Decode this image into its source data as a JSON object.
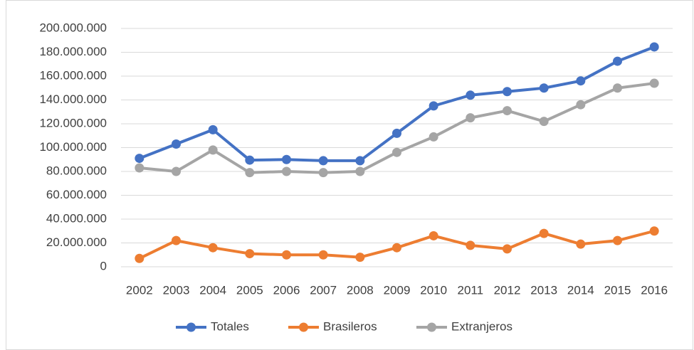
{
  "chart_data": {
    "type": "line",
    "categories": [
      "2002",
      "2003",
      "2004",
      "2005",
      "2006",
      "2007",
      "2008",
      "2009",
      "2010",
      "2011",
      "2012",
      "2013",
      "2014",
      "2015",
      "2016"
    ],
    "series": [
      {
        "name": "Totales",
        "color": "#4472c4",
        "values": [
          91000000,
          103000000,
          115000000,
          89500000,
          90000000,
          89000000,
          89000000,
          112000000,
          135000000,
          144000000,
          147000000,
          150000000,
          156000000,
          172500000,
          184500000
        ]
      },
      {
        "name": "Brasileros",
        "color": "#ed7d31",
        "values": [
          7000000,
          22000000,
          16000000,
          11000000,
          10000000,
          10000000,
          8000000,
          16000000,
          26000000,
          18000000,
          15000000,
          28000000,
          19000000,
          22000000,
          30000000
        ]
      },
      {
        "name": "Extranjeros",
        "color": "#a5a5a5",
        "values": [
          83000000,
          80000000,
          98000000,
          79000000,
          80000000,
          79000000,
          80000000,
          96000000,
          109000000,
          125000000,
          131000000,
          122000000,
          136000000,
          150000000,
          154000000
        ]
      }
    ],
    "ylim": [
      0,
      200000000
    ],
    "yticks": [
      0,
      {
        "value": 20000000,
        "label": "20.000.000"
      },
      {
        "value": 40000000,
        "label": "40.000.000"
      },
      {
        "value": 60000000,
        "label": "60.000.000"
      },
      {
        "value": 80000000,
        "label": "80.000.000"
      },
      {
        "value": 100000000,
        "label": "100.000.000"
      },
      {
        "value": 120000000,
        "label": "120.000.000"
      },
      {
        "value": 140000000,
        "label": "140.000.000"
      },
      {
        "value": 160000000,
        "label": "160.000.000"
      },
      {
        "value": 180000000,
        "label": "180.000.000"
      },
      {
        "value": 200000000,
        "label": "200.000.000"
      }
    ],
    "grid": true,
    "legend": "bottom"
  }
}
